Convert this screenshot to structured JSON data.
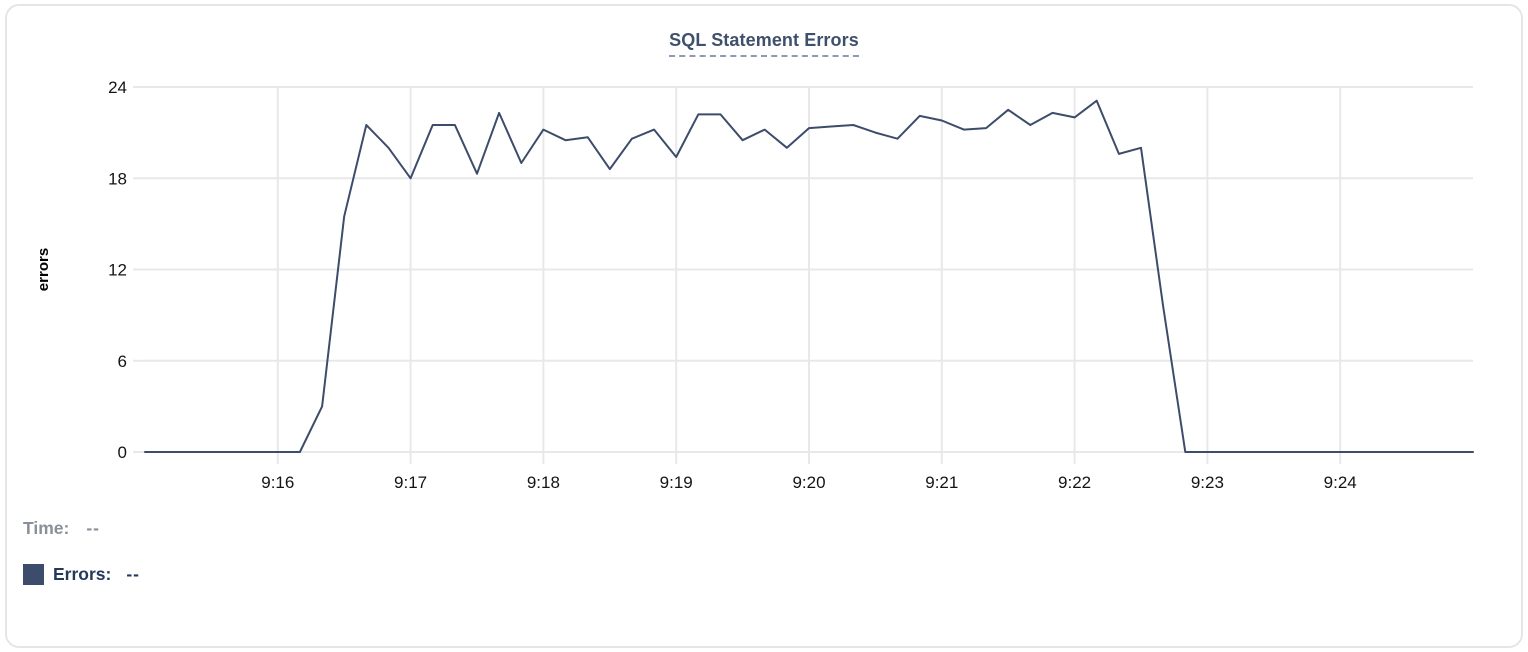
{
  "title": "SQL Statement Errors",
  "tooltip": {
    "time_label": "Time:",
    "time_value": "--",
    "errors_label": "Errors:",
    "errors_value": "--"
  },
  "colors": {
    "line": "#3d4c6b",
    "swatch": "#3d4c6b",
    "grid": "#e8e8ea",
    "axis_text": "#141414",
    "title_text": "#3e506b",
    "time_text": "#8a9099",
    "errors_text": "#24395c",
    "card_border": "#e4e5e9"
  },
  "chart_data": {
    "type": "line",
    "title": "SQL Statement Errors",
    "xlabel": "",
    "ylabel": "errors",
    "ylim": [
      0,
      24
    ],
    "y_ticks": [
      0,
      6,
      12,
      18,
      24
    ],
    "x_tick_labels": [
      "9:16",
      "9:17",
      "9:18",
      "9:19",
      "9:20",
      "9:21",
      "9:22",
      "9:23",
      "9:24"
    ],
    "x_start_time": "9:15:00",
    "x_end_time": "9:25:00",
    "interval_seconds": 10,
    "total_seconds": 600,
    "tick_interval_seconds": 60,
    "grid": true,
    "legend_position": "below-left",
    "series": [
      {
        "name": "Errors",
        "values": [
          0,
          0,
          0,
          0,
          0,
          0,
          0,
          0,
          3,
          15.5,
          21.5,
          20,
          18,
          21.5,
          21.5,
          18.3,
          22.3,
          19,
          21.2,
          20.5,
          20.7,
          18.6,
          20.6,
          21.2,
          19.4,
          22.2,
          22.2,
          20.5,
          21.2,
          20,
          21.3,
          21.4,
          21.5,
          21,
          20.6,
          22.1,
          21.8,
          21.2,
          21.3,
          22.5,
          21.5,
          22.3,
          22,
          23.1,
          19.6,
          20,
          9.6,
          0,
          0,
          0,
          0,
          0,
          0,
          0,
          0,
          0,
          0,
          0,
          0,
          0,
          0
        ]
      }
    ]
  }
}
